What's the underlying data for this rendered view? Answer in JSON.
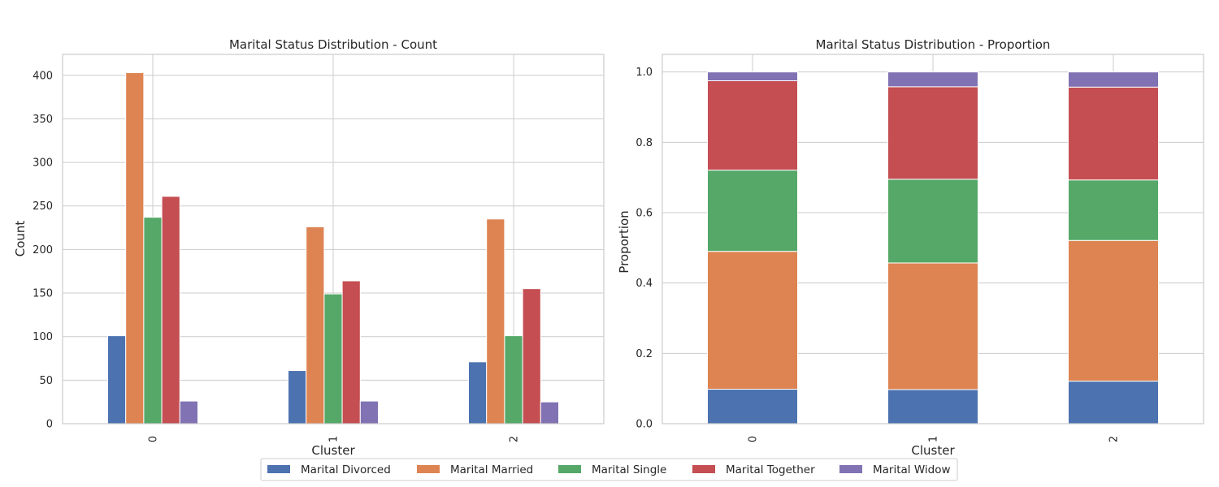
{
  "chart_data": [
    {
      "type": "bar",
      "title": "Marital Status Distribution - Count",
      "xlabel": "Cluster",
      "ylabel": "Count",
      "categories": [
        "0",
        "1",
        "2"
      ],
      "ylim": [
        0,
        424
      ],
      "yticks": [
        0,
        50,
        100,
        150,
        200,
        250,
        300,
        350,
        400
      ],
      "grid": true,
      "series": [
        {
          "name": "Marital Divorced",
          "values": [
            101,
            61,
            71
          ]
        },
        {
          "name": "Marital Married",
          "values": [
            403,
            226,
            235
          ]
        },
        {
          "name": "Marital Single",
          "values": [
            237,
            149,
            101
          ]
        },
        {
          "name": "Marital Together",
          "values": [
            261,
            164,
            155
          ]
        },
        {
          "name": "Marital Widow",
          "values": [
            26,
            26,
            25
          ]
        }
      ]
    },
    {
      "type": "bar",
      "stacked": true,
      "title": "Marital Status Distribution - Proportion",
      "xlabel": "Cluster",
      "ylabel": "Proportion",
      "categories": [
        "0",
        "1",
        "2"
      ],
      "ylim": [
        0,
        1.05
      ],
      "yticks": [
        "0.0",
        "0.2",
        "0.4",
        "0.6",
        "0.8",
        "1.0"
      ],
      "grid": true,
      "series": [
        {
          "name": "Marital Divorced",
          "values": [
            0.098,
            0.097,
            0.121
          ]
        },
        {
          "name": "Marital Married",
          "values": [
            0.392,
            0.36,
            0.4
          ]
        },
        {
          "name": "Marital Single",
          "values": [
            0.231,
            0.238,
            0.172
          ]
        },
        {
          "name": "Marital Together",
          "values": [
            0.254,
            0.263,
            0.264
          ]
        },
        {
          "name": "Marital Widow",
          "values": [
            0.025,
            0.042,
            0.043
          ]
        }
      ]
    }
  ],
  "legend": {
    "placement": "bottom-center",
    "items": [
      "Marital Divorced",
      "Marital Married",
      "Marital Single",
      "Marital Together",
      "Marital Widow"
    ]
  },
  "colors": [
    "#4c72b0",
    "#dd8452",
    "#55a868",
    "#c44e52",
    "#8172b3"
  ]
}
